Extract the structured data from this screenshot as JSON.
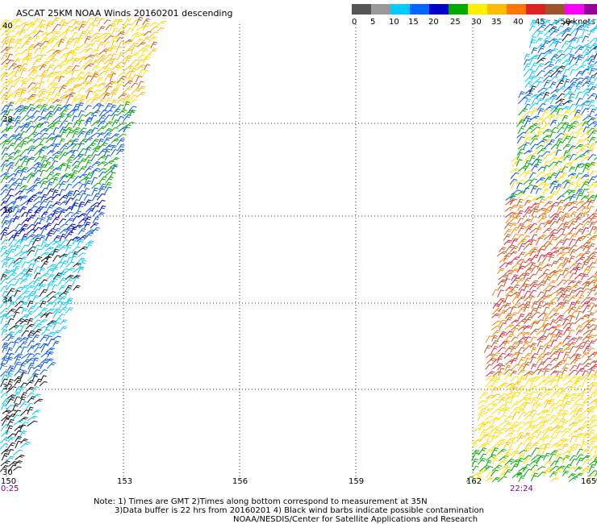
{
  "title": "ASCAT 25KM NOAA Winds 20160201 descending",
  "legend": {
    "colors": [
      "#555555",
      "#999999",
      "#00ccff",
      "#0066ff",
      "#0000cc",
      "#00aa00",
      "#ffee00",
      "#ffbb00",
      "#ff7700",
      "#dd2222",
      "#a0522d",
      "#ff00ff",
      "#990099",
      "#220066"
    ],
    "tick_labels": [
      "0",
      "5",
      "10",
      "15",
      "20",
      "25",
      "30",
      "35",
      "40",
      "45",
      ">50 knots"
    ]
  },
  "lat_labels": [
    "40",
    "38",
    "36",
    "34",
    "32",
    "30"
  ],
  "lon_labels": [
    "150",
    "153",
    "156",
    "159",
    "162",
    "165"
  ],
  "time_labels": [
    "0:25",
    "22:24"
  ],
  "notes": [
    "Note: 1) Times are GMT 2)Times along bottom correspond to measurement at 35N",
    "3)Data buffer is 22 hrs from 20160201 4) Black wind barbs indicate possible contamination",
    "NOAA/NESDIS/Center for Satellite Applications and Research"
  ]
}
